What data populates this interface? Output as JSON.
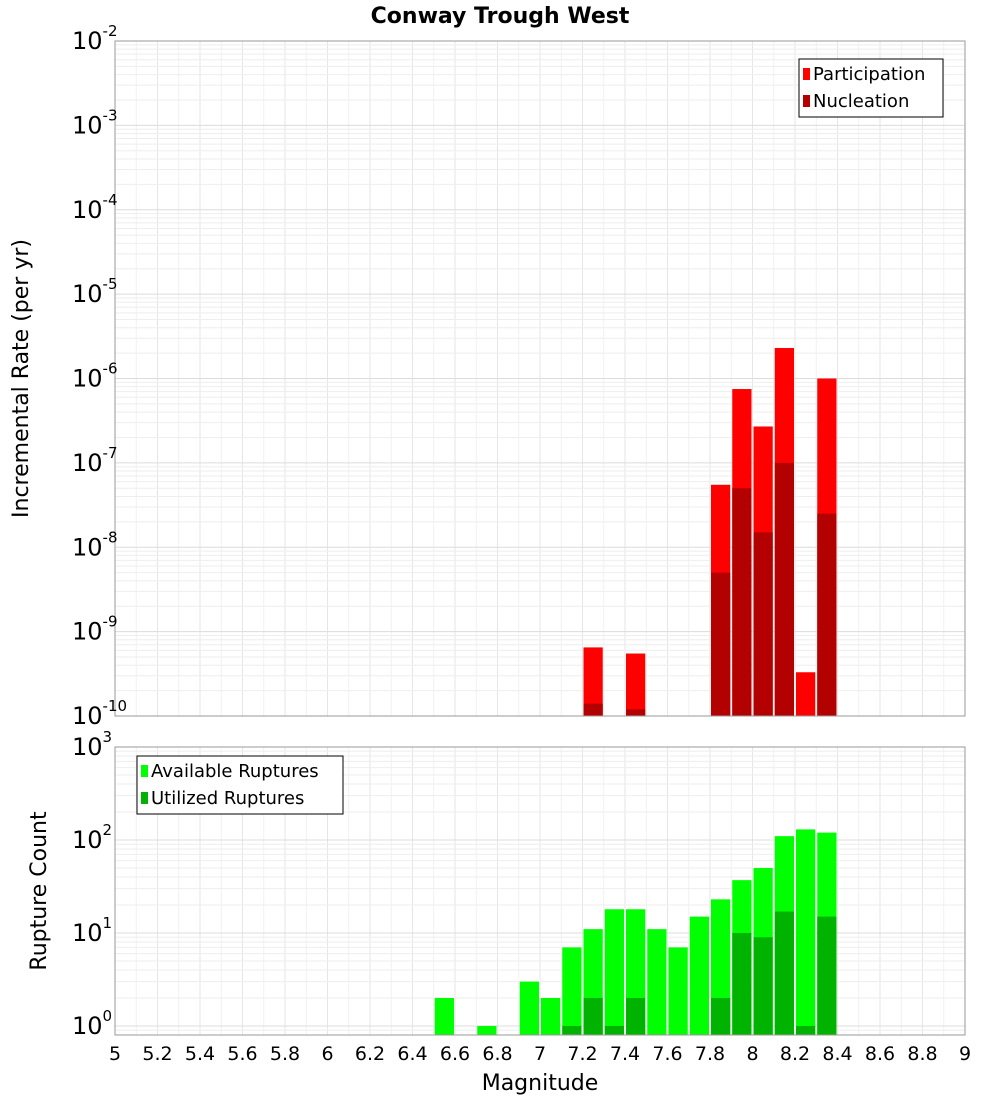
{
  "title": "Conway Trough West",
  "xlabel": "Magnitude",
  "x_ticks": [
    "5",
    "5.2",
    "5.4",
    "5.6",
    "5.8",
    "6",
    "6.2",
    "6.4",
    "6.6",
    "6.8",
    "7",
    "7.2",
    "7.4",
    "7.6",
    "7.8",
    "8",
    "8.2",
    "8.4",
    "8.6",
    "8.8",
    "9"
  ],
  "chart_data": [
    {
      "type": "bar",
      "ylabel": "Incremental Rate (per yr)",
      "yscale": "log",
      "ylim": [
        1e-10,
        0.01
      ],
      "xlim": [
        5,
        9
      ],
      "grid": true,
      "legend_position": "top-right",
      "y_tick_exponents": [
        "-2",
        "-3",
        "-4",
        "-5",
        "-6",
        "-7",
        "-8",
        "-9",
        "-10"
      ],
      "bin_width": 0.1,
      "series": [
        {
          "name": "Participation",
          "color": "#ff0000",
          "x": [
            7.25,
            7.45,
            7.85,
            7.95,
            8.05,
            8.15,
            8.25,
            8.35
          ],
          "values": [
            6.5e-10,
            5.5e-10,
            5.5e-08,
            7.5e-07,
            2.7e-07,
            2.3e-06,
            3.3e-10,
            1e-06
          ]
        },
        {
          "name": "Nucleation",
          "color": "#b30000",
          "x": [
            7.25,
            7.45,
            7.85,
            7.95,
            8.05,
            8.15,
            8.35
          ],
          "values": [
            1.4e-10,
            1.2e-10,
            5e-09,
            5e-08,
            1.5e-08,
            1e-07,
            2.5e-08
          ]
        }
      ]
    },
    {
      "type": "bar",
      "ylabel": "Rupture Count",
      "yscale": "log",
      "ylim": [
        0.8,
        1000
      ],
      "xlim": [
        5,
        9
      ],
      "grid": true,
      "legend_position": "top-left",
      "y_tick_exponents": [
        "3",
        "2",
        "1",
        "0"
      ],
      "bin_width": 0.1,
      "series": [
        {
          "name": "Available Ruptures",
          "color": "#00ff00",
          "x": [
            6.55,
            6.75,
            6.95,
            7.05,
            7.15,
            7.25,
            7.35,
            7.45,
            7.55,
            7.65,
            7.75,
            7.85,
            7.95,
            8.05,
            8.15,
            8.25,
            8.35
          ],
          "values": [
            2,
            1,
            3,
            2,
            7,
            11,
            18,
            18,
            11,
            7,
            15,
            23,
            37,
            50,
            110,
            130,
            120
          ]
        },
        {
          "name": "Utilized Ruptures",
          "color": "#00b300",
          "x": [
            7.15,
            7.25,
            7.35,
            7.45,
            7.85,
            7.95,
            8.05,
            8.15,
            8.25,
            8.35
          ],
          "values": [
            1,
            2,
            1,
            2,
            2,
            10,
            9,
            17,
            1,
            15
          ]
        }
      ]
    }
  ]
}
